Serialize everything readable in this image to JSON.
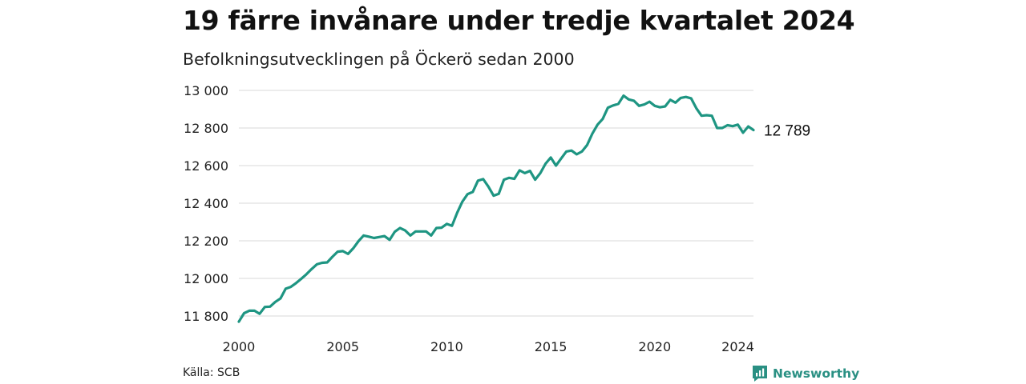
{
  "title": "19 färre invånare under tredje kvartalet 2024",
  "subtitle": "Befolkningsutvecklingen på Öckerö sedan 2000",
  "source": "Källa: SCB",
  "brand": {
    "name": "Newsworthy",
    "color": "#2a9083"
  },
  "chart_data": {
    "type": "line",
    "title": "19 färre invånare under tredje kvartalet 2024",
    "subtitle": "Befolkningsutvecklingen på Öckerö sedan 2000",
    "xlabel": "",
    "ylabel": "",
    "xlim": [
      2000,
      2024.75
    ],
    "ylim": [
      11800,
      13000
    ],
    "x_ticks": [
      2000,
      2005,
      2010,
      2015,
      2020,
      2024
    ],
    "x_tick_labels": [
      "2000",
      "2005",
      "2010",
      "2015",
      "2020",
      "2024"
    ],
    "y_ticks": [
      11800,
      12000,
      12200,
      12400,
      12600,
      12800,
      13000
    ],
    "y_tick_labels": [
      "11 800",
      "12 000",
      "12 200",
      "12 400",
      "12 600",
      "12 800",
      "13 000"
    ],
    "grid": "horizontal",
    "line_color": "#1e9582",
    "end_label": "12 789",
    "series": [
      {
        "x": [
          2000.0,
          2000.25,
          2000.5,
          2000.75,
          2001.0,
          2001.25,
          2001.5,
          2001.75,
          2002.0,
          2002.25,
          2002.5,
          2002.75,
          2003.0,
          2003.25,
          2003.5,
          2003.75,
          2004.0,
          2004.25,
          2004.5,
          2004.75,
          2005.0,
          2005.25,
          2005.5,
          2005.75,
          2006.0,
          2006.25,
          2006.5,
          2006.75,
          2007.0,
          2007.25,
          2007.5,
          2007.75,
          2008.0,
          2008.25,
          2008.5,
          2008.75,
          2009.0,
          2009.25,
          2009.5,
          2009.75,
          2010.0,
          2010.25,
          2010.5,
          2010.75,
          2011.0,
          2011.25,
          2011.5,
          2011.75,
          2012.0,
          2012.25,
          2012.5,
          2012.75,
          2013.0,
          2013.25,
          2013.5,
          2013.75,
          2014.0,
          2014.25,
          2014.5,
          2014.75,
          2015.0,
          2015.25,
          2015.5,
          2015.75,
          2016.0,
          2016.25,
          2016.5,
          2016.75,
          2017.0,
          2017.25,
          2017.5,
          2017.75,
          2018.0,
          2018.25,
          2018.5,
          2018.75,
          2019.0,
          2019.25,
          2019.5,
          2019.75,
          2020.0,
          2020.25,
          2020.5,
          2020.75,
          2021.0,
          2021.25,
          2021.5,
          2021.75,
          2022.0,
          2022.25,
          2022.5,
          2022.75,
          2023.0,
          2023.25,
          2023.5,
          2023.75,
          2024.0,
          2024.25,
          2024.5,
          2024.75
        ],
        "values": [
          11770,
          11815,
          11828,
          11828,
          11812,
          11848,
          11850,
          11875,
          11893,
          11945,
          11955,
          11975,
          11998,
          12022,
          12050,
          12075,
          12083,
          12085,
          12115,
          12142,
          12145,
          12130,
          12160,
          12198,
          12228,
          12222,
          12215,
          12220,
          12225,
          12205,
          12248,
          12268,
          12255,
          12228,
          12250,
          12250,
          12250,
          12228,
          12268,
          12270,
          12290,
          12280,
          12350,
          12408,
          12448,
          12460,
          12520,
          12528,
          12488,
          12440,
          12450,
          12525,
          12535,
          12530,
          12575,
          12560,
          12572,
          12525,
          12560,
          12610,
          12643,
          12600,
          12638,
          12675,
          12680,
          12660,
          12675,
          12710,
          12770,
          12818,
          12848,
          12908,
          12920,
          12928,
          12972,
          12952,
          12945,
          12918,
          12925,
          12940,
          12918,
          12910,
          12915,
          12950,
          12935,
          12960,
          12965,
          12958,
          12905,
          12865,
          12868,
          12865,
          12800,
          12800,
          12815,
          12810,
          12818,
          12775,
          12808,
          12789
        ]
      }
    ]
  }
}
